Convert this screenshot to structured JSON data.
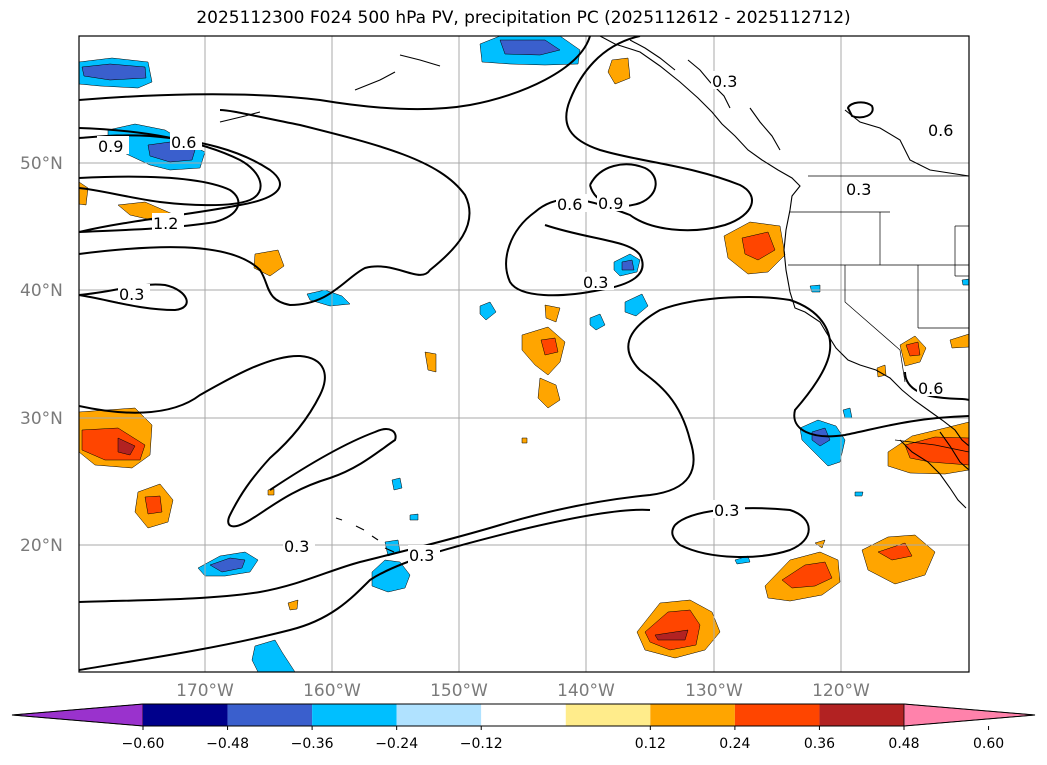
{
  "title": "2025112300 F024 500 hPa PV, precipitation PC (2025112612 - 2025112712)",
  "lat_labels": [
    "50°N",
    "40°N",
    "30°N",
    "20°N"
  ],
  "lon_labels": [
    "170°W",
    "160°W",
    "150°W",
    "140°W",
    "130°W",
    "120°W"
  ],
  "contour_labels": [
    "0.9",
    "0.6",
    "1.2",
    "0.3",
    "0.6",
    "0.9",
    "0.3",
    "0.3",
    "0.3",
    "0.3",
    "0.3",
    "0.6",
    "0.3",
    "0.6"
  ],
  "colorbar": {
    "ticks": [
      "−0.60",
      "−0.48",
      "−0.36",
      "−0.24",
      "−0.12",
      "0.12",
      "0.24",
      "0.36",
      "0.48",
      "0.60"
    ],
    "colors": [
      "#9a32cd",
      "#00008b",
      "#3a5fcd",
      "#00bfff",
      "#b0e2ff",
      "#ffffff",
      "#ffec8b",
      "#ffa500",
      "#ff4500",
      "#b22222",
      "#ff82ab"
    ]
  }
}
